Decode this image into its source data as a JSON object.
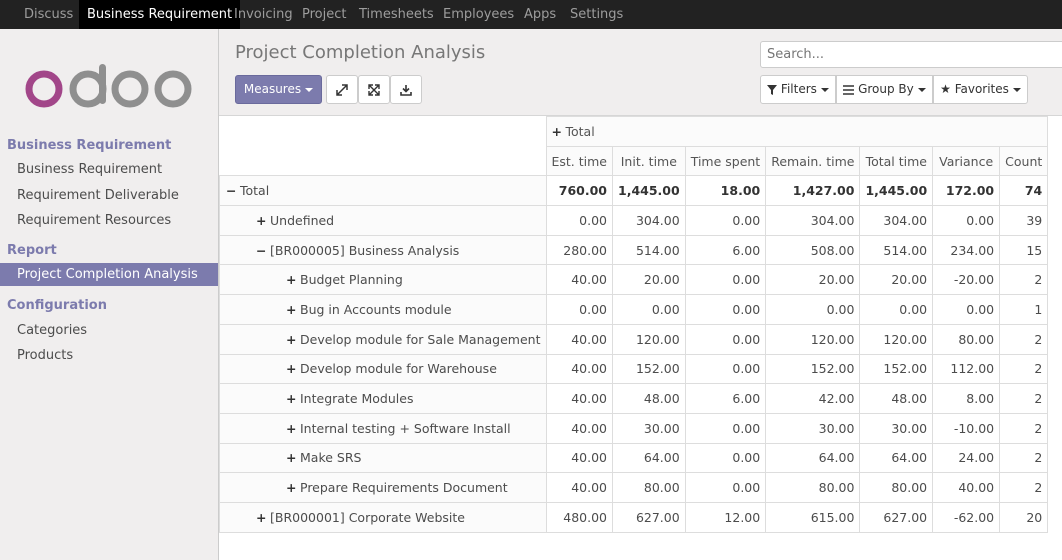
{
  "topbar": {
    "items": [
      "Discuss",
      "Business Requirement",
      "Invoicing",
      "Project",
      "Timesheets",
      "Employees",
      "Apps",
      "Settings"
    ]
  },
  "logo": {
    "text": "odoo"
  },
  "sidebar": {
    "sections": [
      {
        "title": "Business Requirement",
        "items": [
          "Business Requirement",
          "Requirement Deliverable",
          "Requirement Resources"
        ]
      },
      {
        "title": "Report",
        "items": [
          "Project Completion Analysis"
        ]
      },
      {
        "title": "Configuration",
        "items": [
          "Categories",
          "Products"
        ]
      }
    ]
  },
  "control_panel": {
    "title": "Project Completion Analysis",
    "measures_label": "Measures",
    "search_placeholder": "Search...",
    "filters_label": "Filters",
    "groupby_label": "Group By",
    "favorites_label": "Favorites"
  },
  "pivot": {
    "col_header": "Total",
    "measures": [
      "Est. time",
      "Init. time",
      "Time spent",
      "Remain. time",
      "Total time",
      "Variance",
      "Count"
    ],
    "rows": [
      {
        "label": "Total",
        "sign": "−",
        "values": [
          "760.00",
          "1,445.00",
          "18.00",
          "1,427.00",
          "1,445.00",
          "172.00",
          "74"
        ]
      },
      {
        "label": "Undefined",
        "sign": "+",
        "values": [
          "0.00",
          "304.00",
          "0.00",
          "304.00",
          "304.00",
          "0.00",
          "39"
        ]
      },
      {
        "label": "[BR000005] Business Analysis",
        "sign": "−",
        "values": [
          "280.00",
          "514.00",
          "6.00",
          "508.00",
          "514.00",
          "234.00",
          "15"
        ]
      },
      {
        "label": "Budget Planning",
        "sign": "+",
        "values": [
          "40.00",
          "20.00",
          "0.00",
          "20.00",
          "20.00",
          "-20.00",
          "2"
        ]
      },
      {
        "label": "Bug in Accounts module",
        "sign": "+",
        "values": [
          "0.00",
          "0.00",
          "0.00",
          "0.00",
          "0.00",
          "0.00",
          "1"
        ]
      },
      {
        "label": "Develop module for Sale Management",
        "sign": "+",
        "values": [
          "40.00",
          "120.00",
          "0.00",
          "120.00",
          "120.00",
          "80.00",
          "2"
        ]
      },
      {
        "label": "Develop module for Warehouse",
        "sign": "+",
        "values": [
          "40.00",
          "152.00",
          "0.00",
          "152.00",
          "152.00",
          "112.00",
          "2"
        ]
      },
      {
        "label": "Integrate Modules",
        "sign": "+",
        "values": [
          "40.00",
          "48.00",
          "6.00",
          "42.00",
          "48.00",
          "8.00",
          "2"
        ]
      },
      {
        "label": "Internal testing + Software Install",
        "sign": "+",
        "values": [
          "40.00",
          "30.00",
          "0.00",
          "30.00",
          "30.00",
          "-10.00",
          "2"
        ]
      },
      {
        "label": "Make SRS",
        "sign": "+",
        "values": [
          "40.00",
          "64.00",
          "0.00",
          "64.00",
          "64.00",
          "24.00",
          "2"
        ]
      },
      {
        "label": "Prepare Requirements Document",
        "sign": "+",
        "values": [
          "40.00",
          "80.00",
          "0.00",
          "80.00",
          "80.00",
          "40.00",
          "2"
        ]
      },
      {
        "label": "[BR000001] Corporate Website",
        "sign": "+",
        "values": [
          "480.00",
          "627.00",
          "12.00",
          "615.00",
          "627.00",
          "-62.00",
          "20"
        ]
      }
    ]
  },
  "colors": {
    "accent": "#7c7bad",
    "topbar": "#222222"
  }
}
